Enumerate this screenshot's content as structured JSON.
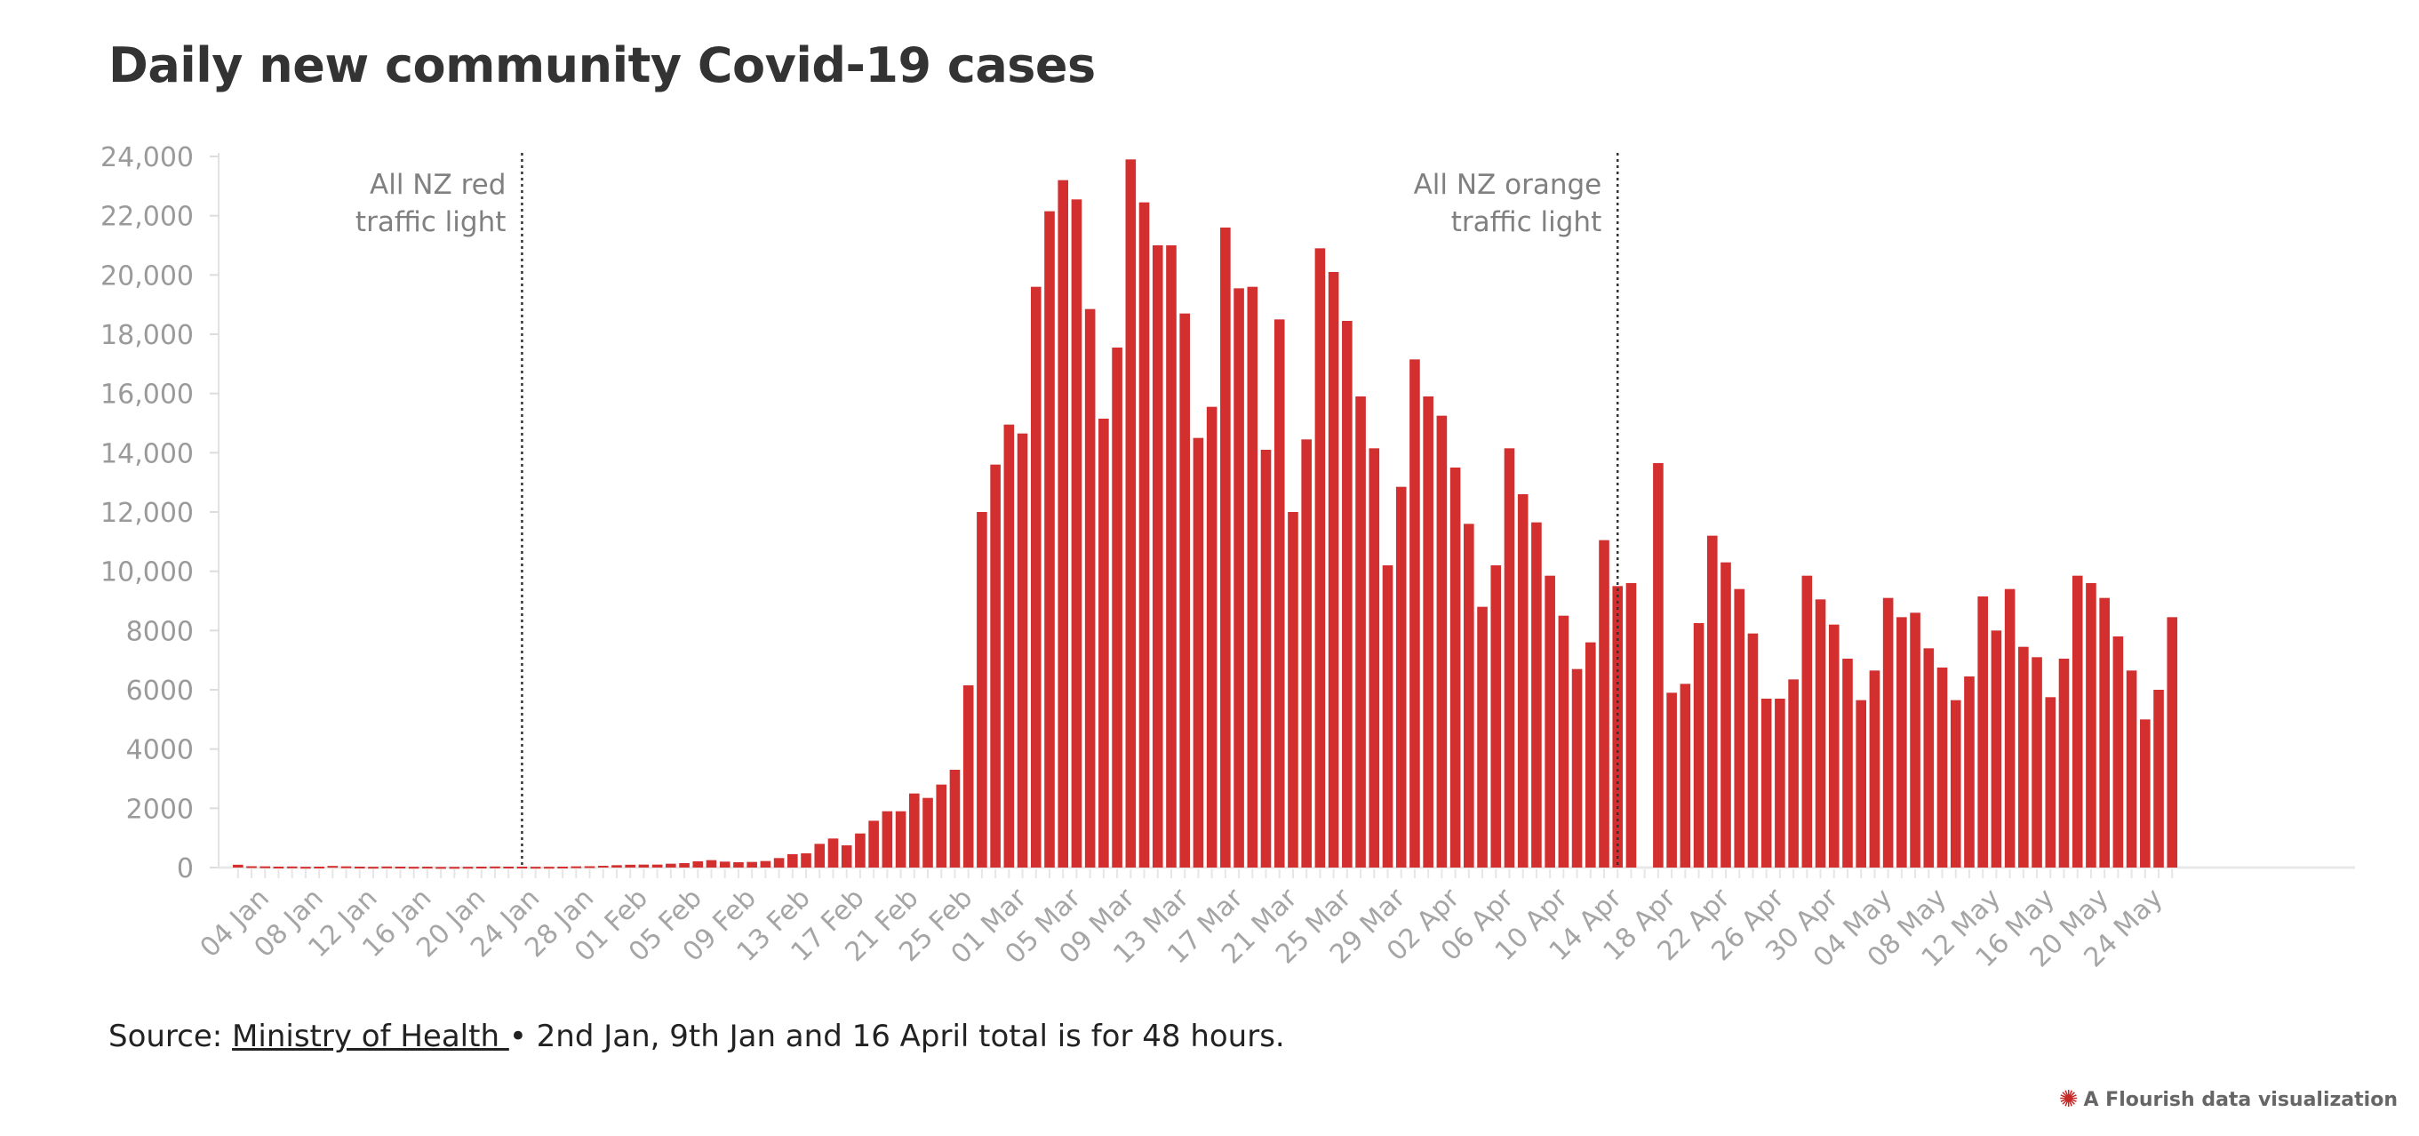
{
  "chart_data": {
    "type": "bar",
    "title": "Daily new community Covid-19 cases",
    "xlabel": "",
    "ylabel": "",
    "ylim": [
      0,
      24000
    ],
    "yticks": [
      0,
      2000,
      4000,
      6000,
      8000,
      10000,
      12000,
      14000,
      16000,
      18000,
      20000,
      22000,
      24000
    ],
    "ytick_labels": [
      "0",
      "2000",
      "4000",
      "6000",
      "8000",
      "10,000",
      "12,000",
      "14,000",
      "16,000",
      "18,000",
      "20,000",
      "22,000",
      "24,000"
    ],
    "bar_color": "#d32f2f",
    "start_date": "2022-01-02",
    "x_tick_labels": [
      "04 Jan",
      "08 Jan",
      "12 Jan",
      "16 Jan",
      "20 Jan",
      "24 Jan",
      "28 Jan",
      "01 Feb",
      "05 Feb",
      "09 Feb",
      "13 Feb",
      "17 Feb",
      "21 Feb",
      "25 Feb",
      "01 Mar",
      "05 Mar",
      "09 Mar",
      "13 Mar",
      "17 Mar",
      "21 Mar",
      "25 Mar",
      "29 Mar",
      "02 Apr",
      "06 Apr",
      "10 Apr",
      "14 Apr",
      "18 Apr",
      "22 Apr",
      "26 Apr",
      "30 Apr",
      "04 May",
      "08 May",
      "12 May",
      "16 May",
      "20 May",
      "24 May"
    ],
    "values": [
      95,
      45,
      40,
      30,
      35,
      25,
      30,
      55,
      40,
      30,
      25,
      35,
      30,
      25,
      28,
      20,
      22,
      25,
      30,
      35,
      30,
      30,
      25,
      25,
      30,
      40,
      45,
      60,
      80,
      95,
      100,
      100,
      130,
      150,
      210,
      250,
      200,
      180,
      190,
      220,
      320,
      450,
      480,
      800,
      980,
      750,
      1150,
      1580,
      1900,
      1900,
      2500,
      2350,
      2800,
      3300,
      6150,
      12000,
      13600,
      14950,
      14650,
      19600,
      22150,
      23200,
      22550,
      18850,
      15150,
      17550,
      23900,
      22450,
      21000,
      21000,
      18700,
      14500,
      15550,
      21600,
      19550,
      19600,
      14100,
      18500,
      12000,
      14450,
      20900,
      20100,
      18450,
      15900,
      14150,
      10200,
      12850,
      17150,
      15900,
      15250,
      13500,
      11600,
      8800,
      10200,
      14150,
      12600,
      11650,
      9850,
      8500,
      6700,
      7600,
      11050,
      9500,
      9600,
      0,
      13650,
      5900,
      6200,
      8250,
      11200,
      10300,
      9400,
      7900,
      5700,
      5700,
      6350,
      9850,
      9050,
      8200,
      7050,
      5650,
      6650,
      9100,
      8450,
      8600,
      7400,
      6750,
      5650,
      6450,
      9150,
      8000,
      9400,
      7450,
      7100,
      5750,
      7050,
      9850,
      9600,
      9100,
      7800,
      6650,
      5000,
      6000,
      8450
    ],
    "annotations": [
      {
        "date": "23 Jan",
        "lines": [
          "All NZ red",
          "traffic light"
        ]
      },
      {
        "date": "14 Apr",
        "lines": [
          "All NZ orange",
          "traffic light"
        ]
      }
    ]
  },
  "footer": {
    "source_prefix": "Source: ",
    "source_link": "Ministry of Health ",
    "source_note": "• 2nd Jan, 9th Jan and 16 April total is for 48 hours."
  },
  "branding": {
    "text": "A Flourish data visualization",
    "icon": "flourish-star-icon"
  }
}
